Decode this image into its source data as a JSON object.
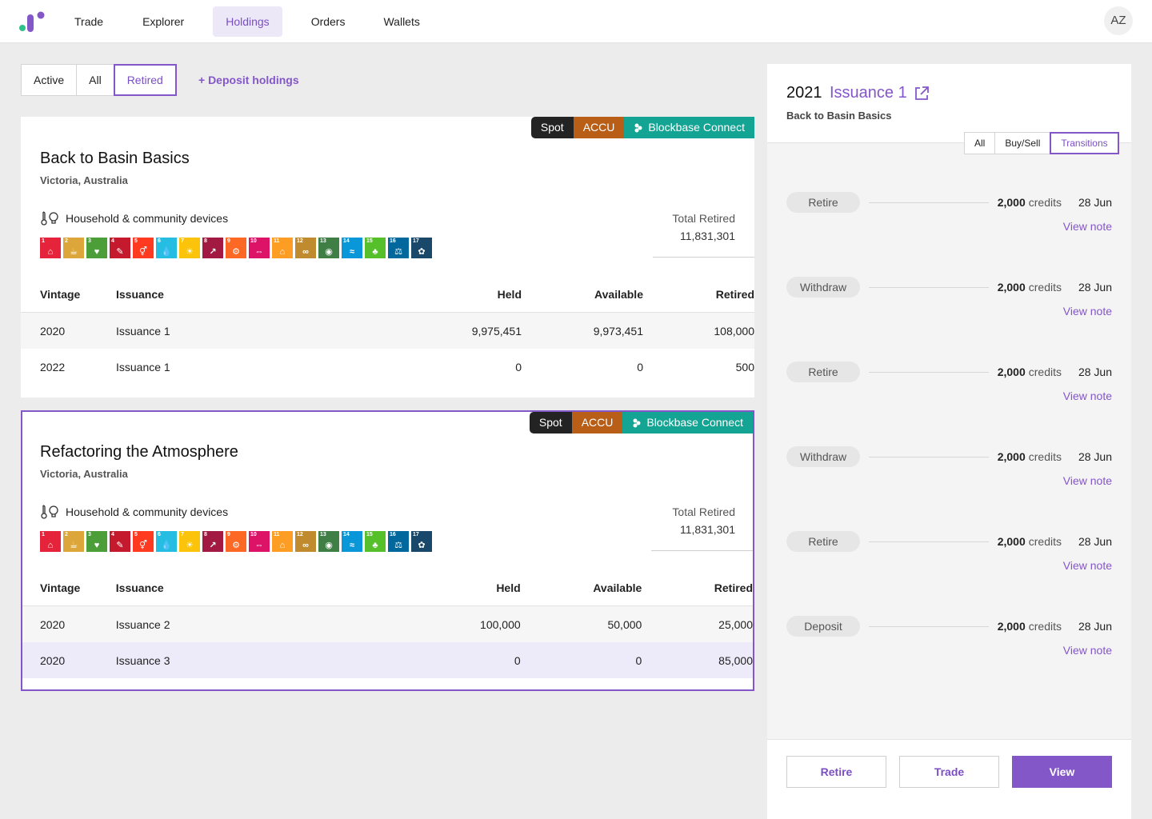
{
  "nav": {
    "items": [
      {
        "label": "Trade"
      },
      {
        "label": "Explorer"
      },
      {
        "label": "Holdings"
      },
      {
        "label": "Orders"
      },
      {
        "label": "Wallets"
      }
    ],
    "active": "Holdings",
    "avatar": "AZ"
  },
  "filters": {
    "buttons": [
      {
        "label": "Active"
      },
      {
        "label": "All"
      },
      {
        "label": "Retired"
      }
    ],
    "active": "Retired",
    "deposit_link": "+ Deposit holdings"
  },
  "holdings": [
    {
      "tags": {
        "spot": "Spot",
        "accu": "ACCU",
        "connect": "Blockbase Connect"
      },
      "title": "Back to Basin Basics",
      "location": "Victoria, Australia",
      "category": "Household & community devices",
      "total_label": "Total Retired",
      "total_value": "11,831,301",
      "columns": {
        "vintage": "Vintage",
        "issuance": "Issuance",
        "held": "Held",
        "available": "Available",
        "retired": "Retired"
      },
      "rows": [
        {
          "vintage": "2020",
          "issuance": "Issuance 1",
          "held": "9,975,451",
          "available": "9,973,451",
          "retired": "108,000"
        },
        {
          "vintage": "2022",
          "issuance": "Issuance 1",
          "held": "0",
          "available": "0",
          "retired": "500"
        }
      ]
    },
    {
      "tags": {
        "spot": "Spot",
        "accu": "ACCU",
        "connect": "Blockbase Connect"
      },
      "title": "Refactoring the Atmosphere",
      "location": "Victoria, Australia",
      "category": "Household & community devices",
      "total_label": "Total Retired",
      "total_value": "11,831,301",
      "columns": {
        "vintage": "Vintage",
        "issuance": "Issuance",
        "held": "Held",
        "available": "Available",
        "retired": "Retired"
      },
      "rows": [
        {
          "vintage": "2020",
          "issuance": "Issuance 2",
          "held": "100,000",
          "available": "50,000",
          "retired": "25,000"
        },
        {
          "vintage": "2020",
          "issuance": "Issuance 3",
          "held": "0",
          "available": "0",
          "retired": "85,000"
        }
      ]
    }
  ],
  "sdg_colors": [
    "#e5243b",
    "#dda63a",
    "#4c9f38",
    "#c5192d",
    "#ff3a21",
    "#26bde2",
    "#fcc30b",
    "#a21942",
    "#fd6925",
    "#dd1367",
    "#fd9d24",
    "#bf8b2e",
    "#3f7e44",
    "#0a97d9",
    "#56c02b",
    "#00689d",
    "#19486a"
  ],
  "panel": {
    "year": "2021",
    "issuance": "Issuance 1",
    "subtitle": "Back to Basin Basics",
    "segments": [
      {
        "label": "All"
      },
      {
        "label": "Buy/Sell"
      },
      {
        "label": "Transitions"
      }
    ],
    "active_segment": "Transitions",
    "transactions": [
      {
        "type": "Retire",
        "amount": "2,000",
        "unit": "credits",
        "date": "28 Jun",
        "note": "View note"
      },
      {
        "type": "Withdraw",
        "amount": "2,000",
        "unit": "credits",
        "date": "28 Jun",
        "note": "View note"
      },
      {
        "type": "Retire",
        "amount": "2,000",
        "unit": "credits",
        "date": "28 Jun",
        "note": "View note"
      },
      {
        "type": "Withdraw",
        "amount": "2,000",
        "unit": "credits",
        "date": "28 Jun",
        "note": "View note"
      },
      {
        "type": "Retire",
        "amount": "2,000",
        "unit": "credits",
        "date": "28 Jun",
        "note": "View note"
      },
      {
        "type": "Deposit",
        "amount": "2,000",
        "unit": "credits",
        "date": "28 Jun",
        "note": "View note"
      }
    ],
    "actions": {
      "retire": "Retire",
      "trade": "Trade",
      "view": "View"
    }
  }
}
